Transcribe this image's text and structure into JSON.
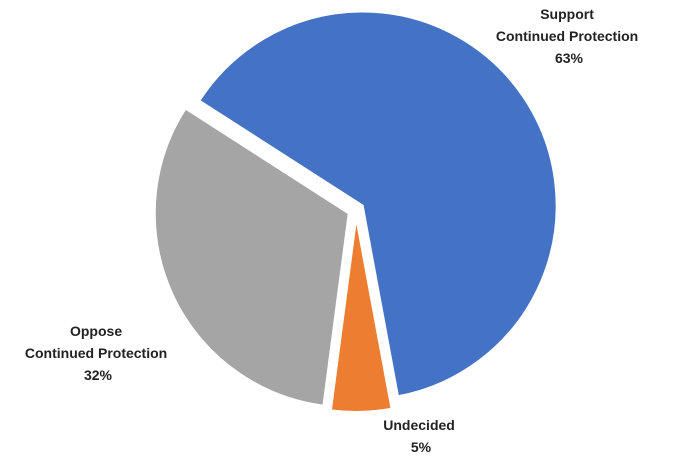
{
  "chart_data": {
    "type": "pie",
    "title": "",
    "slices": [
      {
        "label_lines": [
          "Support",
          "Continued Protection"
        ],
        "percent_label": "63%",
        "value": 63,
        "color": "#4472C4"
      },
      {
        "label_lines": [
          "Undecided"
        ],
        "percent_label": "5%",
        "value": 5,
        "color": "#ED7D31"
      },
      {
        "label_lines": [
          "Oppose",
          "Continued Protection"
        ],
        "percent_label": "32%",
        "value": 32,
        "color": "#A5A5A5"
      }
    ],
    "legend": "none",
    "exploded": true
  }
}
